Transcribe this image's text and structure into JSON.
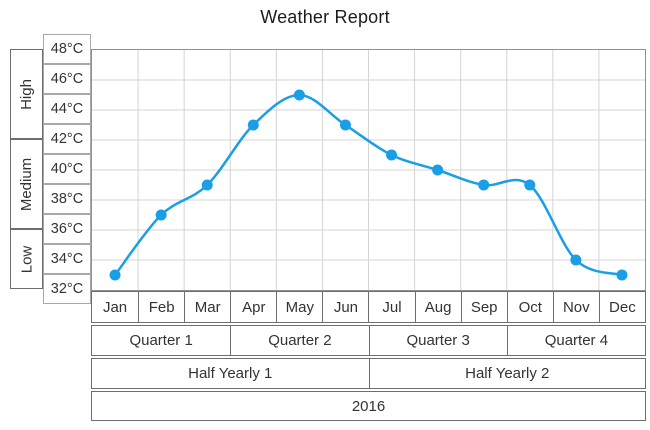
{
  "title": "Weather Report",
  "chart_data": {
    "type": "line",
    "title": "Weather Report",
    "smooth": true,
    "marker": "circle",
    "legend": "none",
    "grid": true,
    "x": [
      "Jan",
      "Feb",
      "Mar",
      "Apr",
      "May",
      "Jun",
      "Jul",
      "Aug",
      "Sep",
      "Oct",
      "Nov",
      "Dec"
    ],
    "values": [
      33,
      37,
      39,
      43,
      45,
      43,
      41,
      40,
      39,
      39,
      34,
      33
    ],
    "unit": "°C",
    "ylim": [
      32,
      48
    ],
    "ytick_step": 2,
    "ytick_labels": [
      "48°C",
      "46°C",
      "44°C",
      "42°C",
      "40°C",
      "38°C",
      "36°C",
      "34°C",
      "32°C"
    ],
    "y_bands": [
      {
        "label": "High",
        "from": 42,
        "to": 48
      },
      {
        "label": "Medium",
        "from": 36,
        "to": 42
      },
      {
        "label": "Low",
        "from": 32,
        "to": 36
      }
    ],
    "x_groups": {
      "quarters": [
        {
          "label": "Quarter 1",
          "span": 3
        },
        {
          "label": "Quarter 2",
          "span": 3
        },
        {
          "label": "Quarter 3",
          "span": 3
        },
        {
          "label": "Quarter 4",
          "span": 3
        }
      ],
      "half_years": [
        {
          "label": "Half Yearly 1",
          "span": 6
        },
        {
          "label": "Half Yearly 2",
          "span": 6
        }
      ],
      "year": [
        {
          "label": "2016",
          "span": 12
        }
      ]
    }
  },
  "colors": {
    "series": "#1A9EE5",
    "gridline": "#d4d4d4",
    "plot_border": "#909090",
    "table_border": "#6e6e6e",
    "label_box_border": "#a8a8a8",
    "text": "#333333",
    "title_text": "#1c1c1c",
    "background": "#ffffff"
  }
}
